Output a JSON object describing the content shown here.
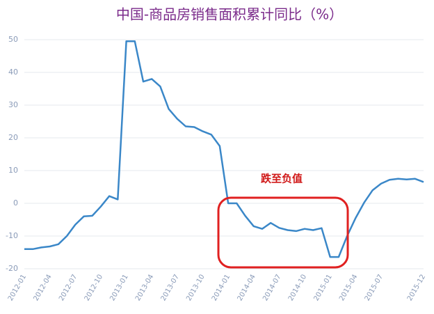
{
  "chart_data": {
    "type": "line",
    "title": "中国-商品房销售面积累计同比（%）",
    "categories": [
      "2012-01",
      null,
      null,
      "2012-04",
      null,
      null,
      "2012-07",
      null,
      null,
      "2012-10",
      null,
      null,
      "2013-01",
      null,
      null,
      "2013-04",
      null,
      null,
      "2013-07",
      null,
      null,
      "2013-10",
      null,
      null,
      "2014-01",
      null,
      null,
      "2014-04",
      null,
      null,
      "2014-07",
      null,
      null,
      "2014-10",
      null,
      null,
      "2015-01",
      null,
      null,
      "2015-04",
      null,
      null,
      "2015-07",
      null,
      null,
      null,
      null,
      "2015-12"
    ],
    "series": [
      {
        "color": "#3a87c8",
        "values": [
          -14,
          -14,
          -13.5,
          -13.2,
          -12.5,
          -10,
          -6.5,
          -4,
          -3.8,
          -1,
          2.2,
          1.2,
          49.5,
          49.5,
          37.2,
          38,
          35.7,
          28.8,
          25.8,
          23.5,
          23.3,
          22,
          21,
          17.5,
          0,
          0,
          -3.8,
          -7,
          -7.8,
          -6,
          -7.5,
          -8.2,
          -8.5,
          -7.8,
          -8.2,
          -7.6,
          -16.4,
          -16.4,
          -10,
          -4.5,
          0.2,
          4,
          6,
          7.2,
          7.5,
          7.3,
          7.5,
          6.5
        ]
      }
    ],
    "ylim": [
      -20,
      50
    ],
    "yticks": [
      -20,
      -10,
      0,
      10,
      20,
      30,
      40,
      50
    ],
    "grid": true,
    "annotation": "跌至负值"
  }
}
